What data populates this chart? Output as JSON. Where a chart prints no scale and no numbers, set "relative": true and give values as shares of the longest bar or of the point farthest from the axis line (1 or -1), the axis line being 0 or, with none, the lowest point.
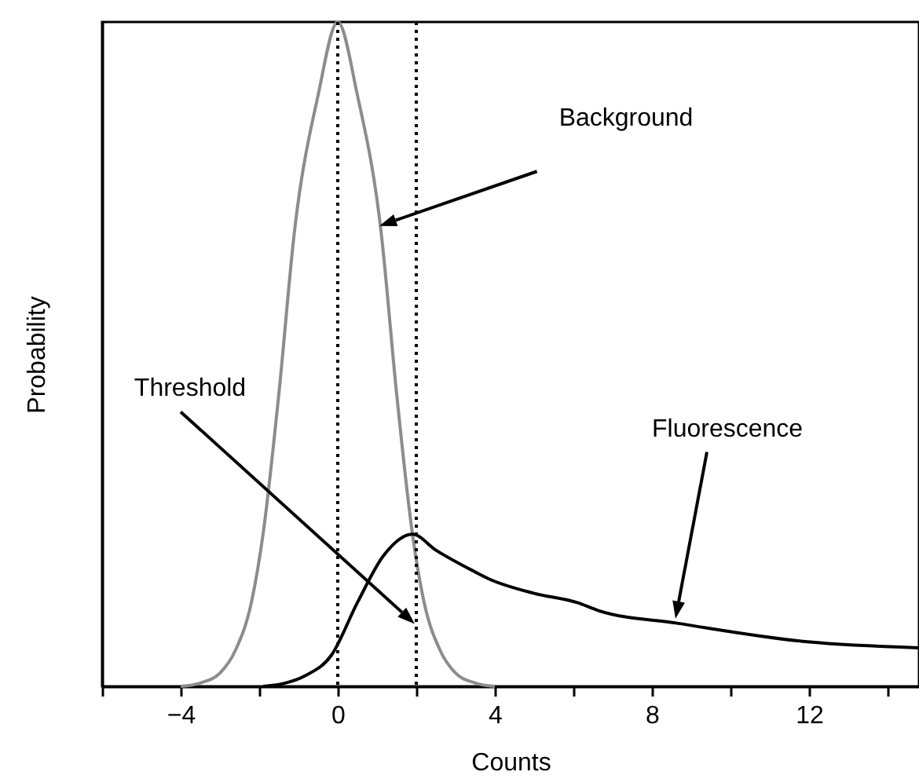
{
  "chart_data": {
    "type": "line",
    "xlabel": "Counts",
    "ylabel": "Probability",
    "relative": true,
    "xlim": [
      -6,
      14.8
    ],
    "xticks": [
      {
        "value": -6,
        "label": null
      },
      {
        "value": -4,
        "label": "−4"
      },
      {
        "value": -2,
        "label": null
      },
      0,
      {
        "value": 2,
        "label": null
      },
      4,
      {
        "value": 6,
        "label": null
      },
      8,
      {
        "value": 10,
        "label": null
      },
      12,
      {
        "value": 14,
        "label": null
      }
    ],
    "line_style": "solid",
    "grid": false,
    "series": [
      {
        "color": "#8c8c8c",
        "x": [
          -4,
          -3.5,
          -3,
          -2.6,
          -2.2,
          -1.9,
          -1.5,
          -1.1,
          -0.5,
          0,
          0.5,
          1.1,
          1.5,
          1.9,
          2.2,
          2.6,
          3,
          3.5,
          4
        ],
        "values": [
          0,
          0.005,
          0.02,
          0.055,
          0.126,
          0.23,
          0.44,
          0.686,
          0.89,
          1,
          0.89,
          0.686,
          0.44,
          0.23,
          0.126,
          0.055,
          0.02,
          0.005,
          0
        ]
      },
      {
        "color": "#000000",
        "x": [
          -1.9,
          -1.4,
          -0.83,
          -0.16,
          0.5,
          1.17,
          1.9,
          2.5,
          3.44,
          3.84,
          5,
          6.1,
          6.64,
          8.64,
          11.96,
          14.8
        ],
        "values": [
          0,
          0.004,
          0.016,
          0.047,
          0.126,
          0.197,
          0.229,
          0.205,
          0.174,
          0.162,
          0.14,
          0.126,
          0.114,
          0.095,
          0.067,
          0.058
        ]
      }
    ],
    "ref_lines": [
      {
        "axis": "x",
        "value": 0,
        "line_style": "dotted",
        "color": "#000000"
      },
      {
        "axis": "x",
        "value": 2,
        "label": "Threshold",
        "line_style": "dotted",
        "color": "#000000"
      }
    ],
    "annotations": [
      "Background",
      "Fluorescence"
    ]
  }
}
